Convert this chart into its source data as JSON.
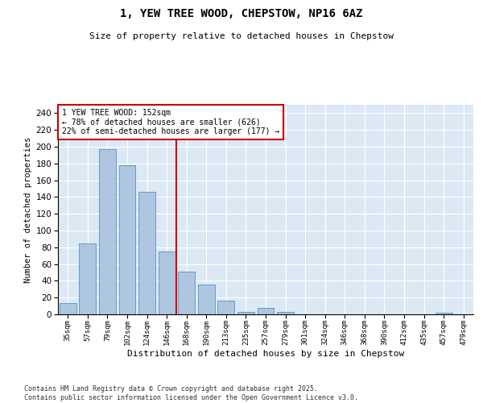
{
  "title_line1": "1, YEW TREE WOOD, CHEPSTOW, NP16 6AZ",
  "title_line2": "Size of property relative to detached houses in Chepstow",
  "xlabel": "Distribution of detached houses by size in Chepstow",
  "ylabel": "Number of detached properties",
  "bar_color": "#aec6df",
  "bar_edge_color": "#6699cc",
  "background_color": "#dce9f5",
  "categories": [
    "35sqm",
    "57sqm",
    "79sqm",
    "102sqm",
    "124sqm",
    "146sqm",
    "168sqm",
    "190sqm",
    "213sqm",
    "235sqm",
    "257sqm",
    "279sqm",
    "301sqm",
    "324sqm",
    "346sqm",
    "368sqm",
    "390sqm",
    "412sqm",
    "435sqm",
    "457sqm",
    "479sqm"
  ],
  "values": [
    13,
    85,
    197,
    178,
    146,
    75,
    51,
    36,
    16,
    3,
    8,
    3,
    0,
    0,
    0,
    0,
    0,
    0,
    0,
    2,
    0
  ],
  "ylim": [
    0,
    250
  ],
  "yticks": [
    0,
    20,
    40,
    60,
    80,
    100,
    120,
    140,
    160,
    180,
    200,
    220,
    240
  ],
  "vline_x": 5.5,
  "vline_color": "#cc0000",
  "annotation_text": "1 YEW TREE WOOD: 152sqm\n← 78% of detached houses are smaller (626)\n22% of semi-detached houses are larger (177) →",
  "annotation_box_color": "#cc0000",
  "footer_line1": "Contains HM Land Registry data © Crown copyright and database right 2025.",
  "footer_line2": "Contains public sector information licensed under the Open Government Licence v3.0."
}
